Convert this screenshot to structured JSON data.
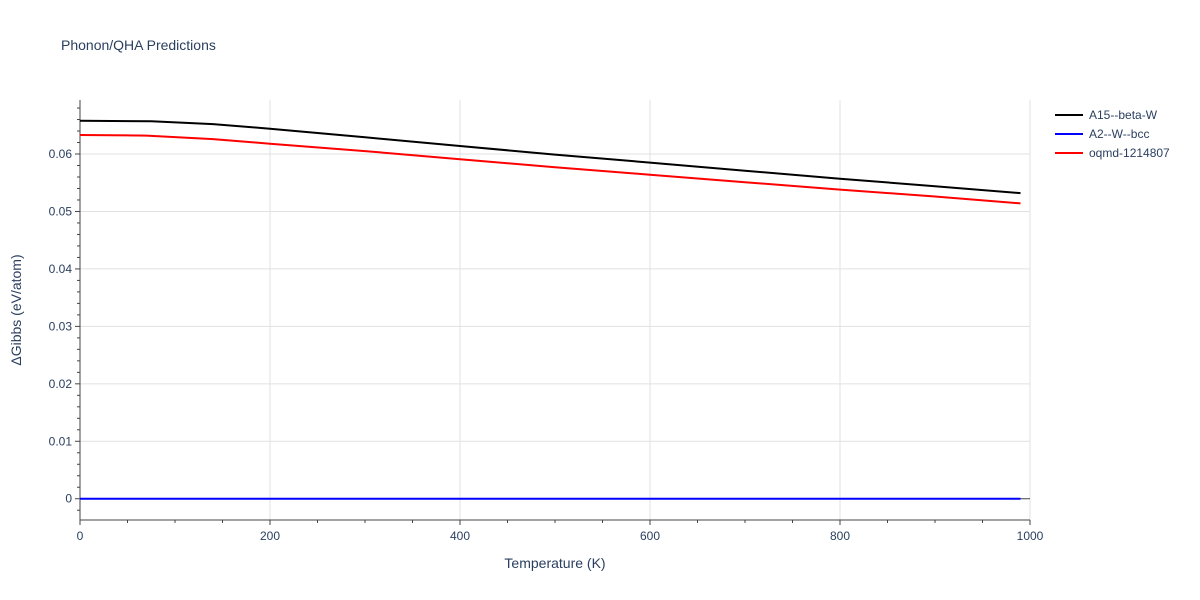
{
  "chart_data": {
    "type": "line",
    "title": "Phonon/QHA Predictions",
    "xlabel": "Temperature (K)",
    "ylabel": "ΔGibbs (eV/atom)",
    "xlim": [
      0,
      1000
    ],
    "ylim": [
      -0.0037,
      0.0694
    ],
    "xticks": [
      0,
      200,
      400,
      600,
      800,
      1000
    ],
    "xtick_labels": [
      "0",
      "200",
      "400",
      "600",
      "800",
      "1000"
    ],
    "yticks": [
      0,
      0.01,
      0.02,
      0.03,
      0.04,
      0.05,
      0.06
    ],
    "ytick_labels": [
      "0",
      "0.01",
      "0.02",
      "0.03",
      "0.04",
      "0.05",
      "0.06"
    ],
    "grid": true,
    "legend_position": "top-right",
    "series": [
      {
        "name": "A15--beta-W",
        "color": "#000000",
        "x": [
          0,
          75,
          140,
          200,
          300,
          400,
          500,
          600,
          700,
          800,
          900,
          990
        ],
        "y": [
          0.0658,
          0.0657,
          0.0652,
          0.0644,
          0.0629,
          0.0614,
          0.0599,
          0.0585,
          0.0571,
          0.0557,
          0.0544,
          0.0532
        ]
      },
      {
        "name": "A2--W--bcc",
        "color": "#0000ff",
        "x": [
          0,
          990
        ],
        "y": [
          0,
          0
        ]
      },
      {
        "name": "oqmd-1214807",
        "color": "#ff0000",
        "x": [
          0,
          70,
          140,
          200,
          300,
          400,
          500,
          600,
          700,
          800,
          900,
          990
        ],
        "y": [
          0.0633,
          0.0632,
          0.0626,
          0.0618,
          0.0605,
          0.0591,
          0.0577,
          0.0564,
          0.0551,
          0.0538,
          0.0526,
          0.0514
        ]
      }
    ]
  }
}
